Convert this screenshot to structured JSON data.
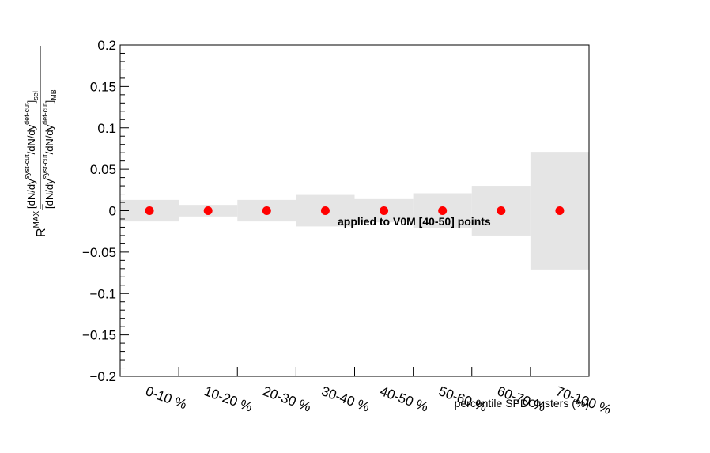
{
  "chart_data": {
    "type": "scatter",
    "x_categories": [
      "0-10 %",
      "10-20 %",
      "20-30 %",
      "30-40 %",
      "40-50 %",
      "50-60 %",
      "60-70 %",
      "70-100 %"
    ],
    "values": [
      0,
      0,
      0,
      0,
      0,
      0,
      0,
      0
    ],
    "uncertainty": [
      0.013,
      0.007,
      0.013,
      0.019,
      0.014,
      0.021,
      0.03,
      0.071
    ],
    "xlabel": "percentile SPDClusters (%)",
    "ylim": [
      -0.2,
      0.2
    ],
    "y_ticks": [
      -0.2,
      -0.15,
      -0.1,
      -0.05,
      0,
      0.05,
      0.1,
      0.15,
      0.2
    ],
    "y_tick_labels": [
      "−0.2",
      "−0.15",
      "−0.1",
      "−0.05",
      "0",
      "0.05",
      "0.1",
      "0.15",
      "0.2"
    ],
    "annotation": "applied to V0M [40-50] points",
    "ylabel": {
      "r": "R",
      "r_sup": "MAX",
      "eq": "=",
      "num_open": "[dN/dy",
      "num_sup1": "syst-cut",
      "num_mid": "/dN/dy",
      "num_sup2": "def-cut",
      "num_close": "]",
      "num_sub": "sel",
      "den_open": "[dN/dy",
      "den_sup1": "syst-cut",
      "den_mid": "/dN/dy",
      "den_sup2": "def-cut",
      "den_close": "]",
      "den_sub": "MB"
    },
    "grid": false,
    "colors": {
      "marker": "#ff0000",
      "band": "#e5e5e5",
      "axis": "#000000"
    }
  }
}
